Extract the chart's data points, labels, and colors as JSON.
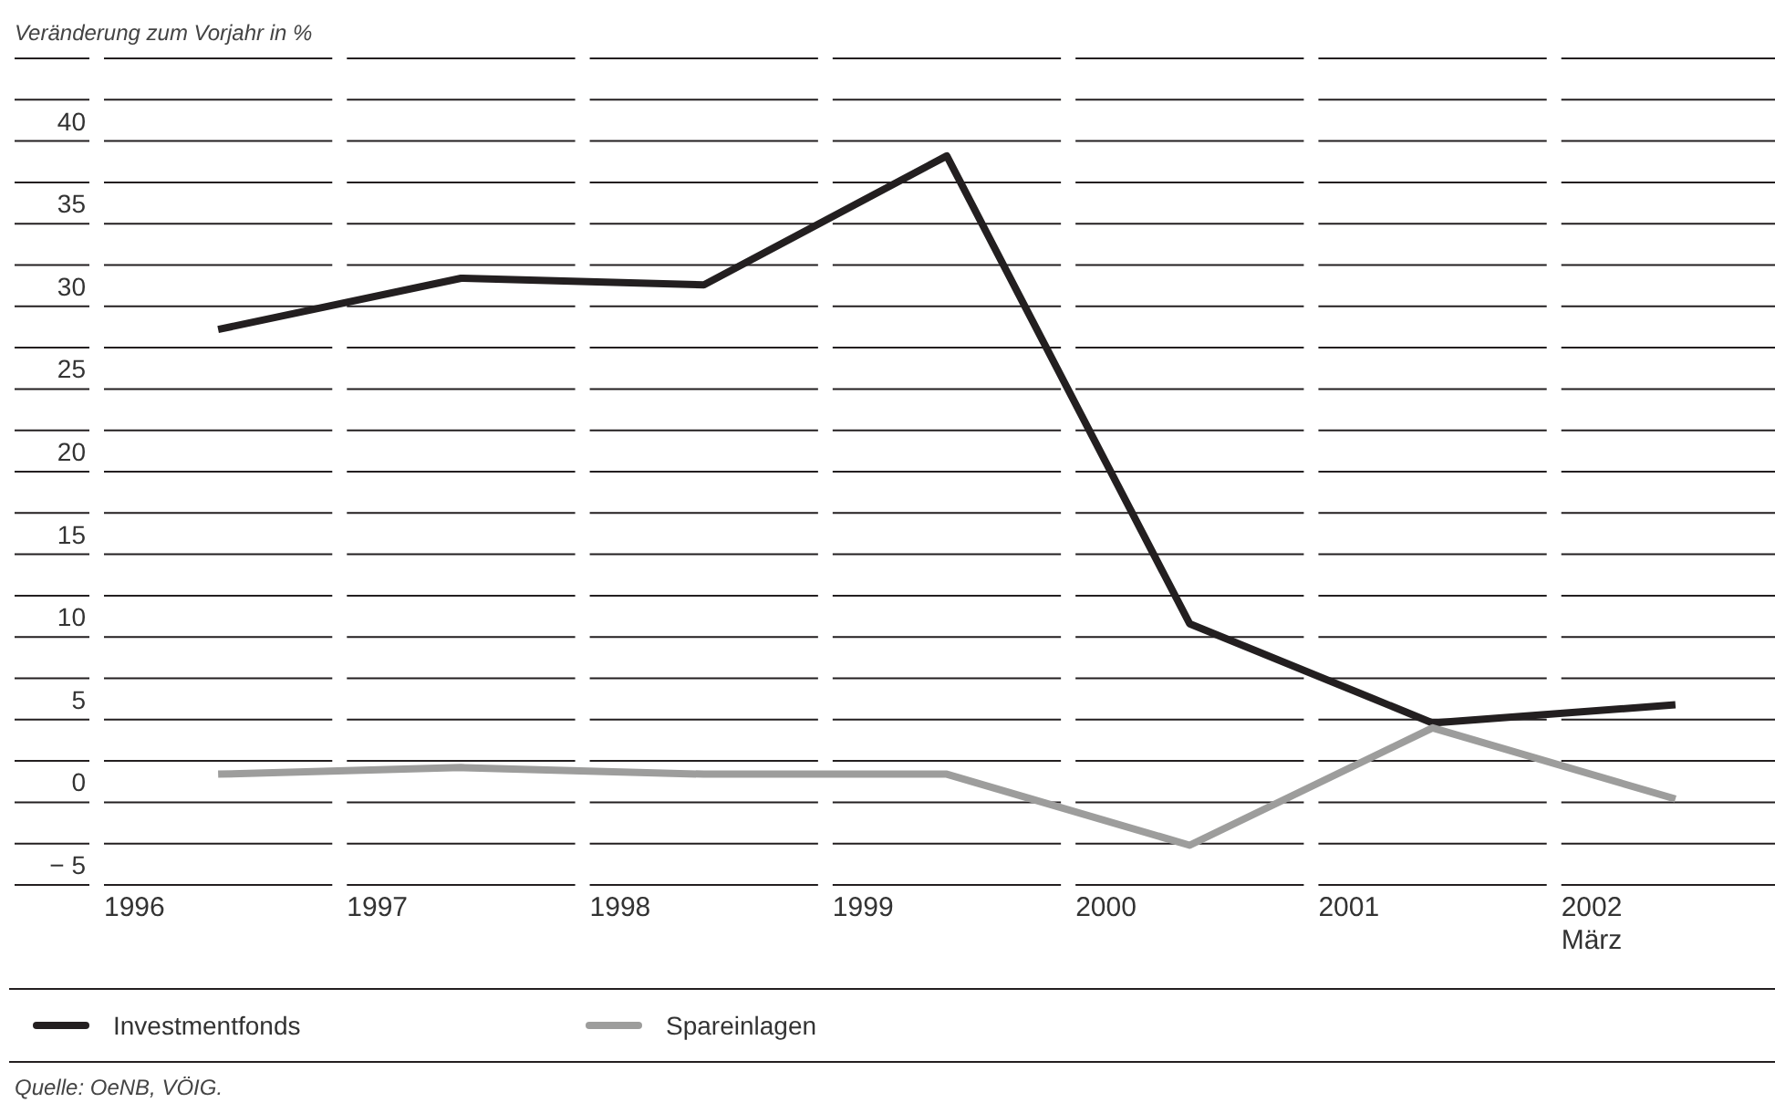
{
  "chart_data": {
    "type": "line",
    "ylabel": "Veränderung zum Vorjahr in %",
    "categories": [
      "1996",
      "1997",
      "1998",
      "1999",
      "2000",
      "2001",
      "2002\nMärz"
    ],
    "series": [
      {
        "name": "Investmentfonds",
        "color": "#231f20",
        "values": [
          28.6,
          31.7,
          31.3,
          39.1,
          10.8,
          4.8,
          5.9
        ]
      },
      {
        "name": "Spareinlagen",
        "color": "#9d9d9c",
        "values": [
          1.7,
          2.1,
          1.7,
          1.7,
          -2.6,
          4.5,
          0.2
        ]
      }
    ],
    "ylim": [
      -5,
      45
    ],
    "yticks": [
      {
        "value": -5,
        "label": "− 5"
      },
      {
        "value": -2.5,
        "label": null
      },
      0,
      {
        "value": 2.5,
        "label": null
      },
      5,
      {
        "value": 7.5,
        "label": null
      },
      10,
      {
        "value": 12.5,
        "label": null
      },
      15,
      {
        "value": 17.5,
        "label": null
      },
      20,
      {
        "value": 22.5,
        "label": null
      },
      25,
      {
        "value": 27.5,
        "label": null
      },
      30,
      {
        "value": 32.5,
        "label": null
      },
      35,
      {
        "value": 37.5,
        "label": null
      },
      40,
      {
        "value": 42.5,
        "label": null
      },
      {
        "value": 45,
        "label": null
      }
    ],
    "grid": "y",
    "legend": "bottom",
    "marker": "none",
    "line_style": "solid",
    "annotations": [
      "Quelle: OeNB, VÖIG."
    ]
  }
}
